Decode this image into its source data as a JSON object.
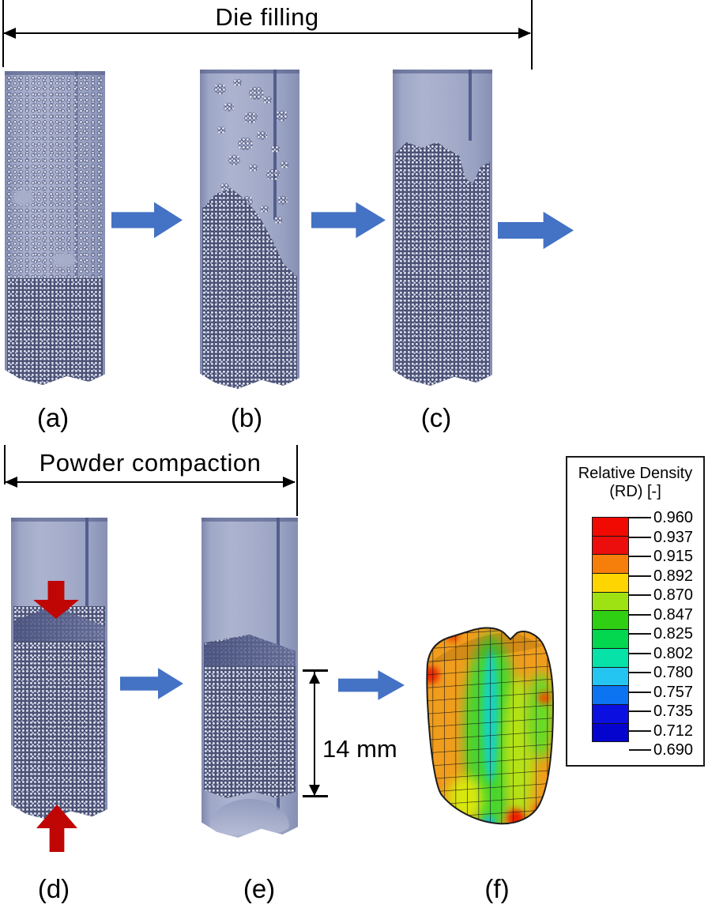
{
  "stage1": {
    "title": "Die filling",
    "labels": [
      "(a)",
      "(b)",
      "(c)"
    ]
  },
  "stage2": {
    "title": "Powder compaction",
    "labels": [
      "(d)",
      "(e)",
      "(f)"
    ]
  },
  "dimension": {
    "label": "14 mm"
  },
  "legend": {
    "title_line1": "Relative Density",
    "title_line2": "(RD) [-]",
    "ticks": [
      "0.960",
      "0.937",
      "0.915",
      "0.892",
      "0.870",
      "0.847",
      "0.825",
      "0.802",
      "0.780",
      "0.757",
      "0.735",
      "0.712",
      "0.690"
    ],
    "bands": [
      "#f00a02",
      "#ec0d0d",
      "#f67e0b",
      "#fed501",
      "#9fe213",
      "#2fcf13",
      "#02d74f",
      "#06e2a8",
      "#25c5f2",
      "#0c74f0",
      "#0b0fe0",
      "#0404ce"
    ]
  },
  "colors": {
    "process_arrow": "#4472c4",
    "punch_arrow": "#c00505",
    "die_body": "#a5adca",
    "powder_particle": "#e3e6f1"
  }
}
